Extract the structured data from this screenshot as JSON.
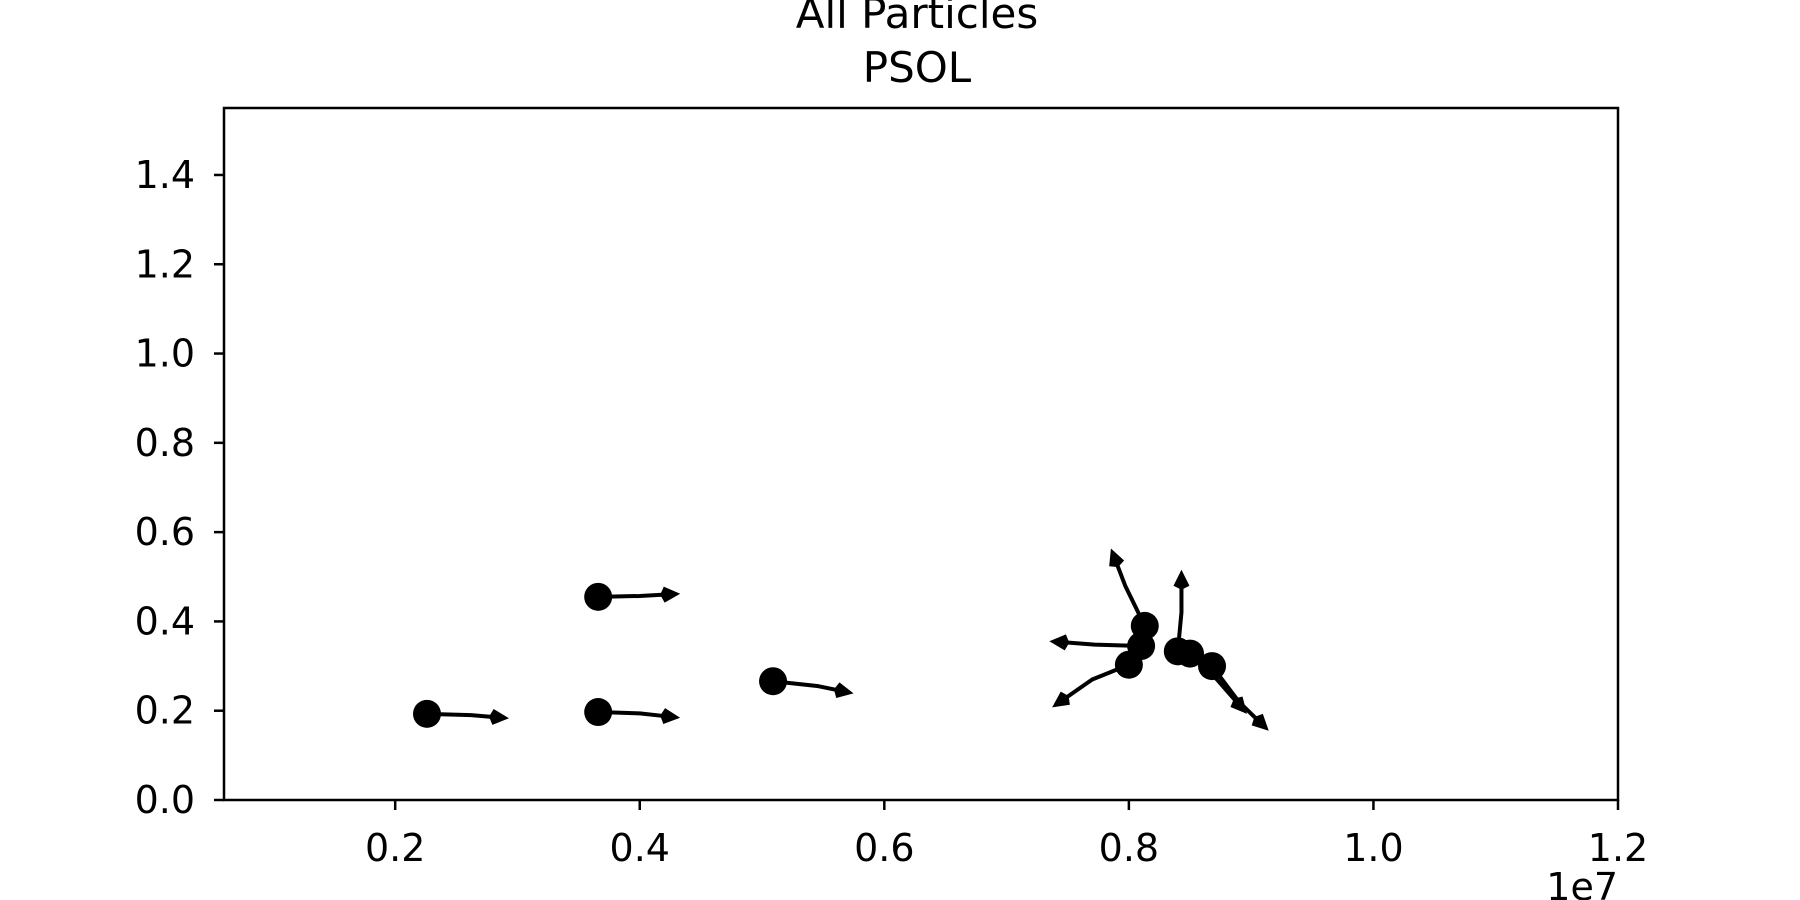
{
  "chart_data": {
    "type": "scatter",
    "title_lines": [
      "All Particles",
      "PSOL"
    ],
    "xlabel": "",
    "ylabel": "",
    "x_offset_label": "1e7",
    "xlim": [
      0.06,
      1.2
    ],
    "ylim": [
      0.0,
      1.55
    ],
    "x_ticks": [
      0.2,
      0.4,
      0.6,
      0.8,
      1.0,
      1.2
    ],
    "x_tick_labels": [
      "0.2",
      "0.4",
      "0.6",
      "0.8",
      "1.0",
      "1.2"
    ],
    "y_ticks": [
      0.0,
      0.2,
      0.4,
      0.6,
      0.8,
      1.0,
      1.2,
      1.4
    ],
    "y_tick_labels": [
      "0.0",
      "0.2",
      "0.4",
      "0.6",
      "0.8",
      "1.0",
      "1.2",
      "1.4"
    ],
    "grid": false,
    "legend": "none",
    "color": "#000000",
    "particles": [
      {
        "x": 0.226,
        "y": 0.193,
        "trail": [
          [
            0.226,
            0.193
          ],
          [
            0.262,
            0.19
          ],
          [
            0.28,
            0.186
          ]
        ]
      },
      {
        "x": 0.366,
        "y": 0.197,
        "trail": [
          [
            0.366,
            0.197
          ],
          [
            0.4,
            0.194
          ],
          [
            0.42,
            0.188
          ]
        ]
      },
      {
        "x": 0.366,
        "y": 0.455,
        "trail": [
          [
            0.366,
            0.455
          ],
          [
            0.4,
            0.457
          ],
          [
            0.42,
            0.46
          ]
        ]
      },
      {
        "x": 0.509,
        "y": 0.266,
        "trail": [
          [
            0.509,
            0.266
          ],
          [
            0.546,
            0.255
          ],
          [
            0.562,
            0.246
          ]
        ]
      },
      {
        "x": 0.8,
        "y": 0.303,
        "trail": [
          [
            0.8,
            0.303
          ],
          [
            0.77,
            0.27
          ],
          [
            0.748,
            0.228
          ]
        ]
      },
      {
        "x": 0.81,
        "y": 0.345,
        "trail": [
          [
            0.81,
            0.345
          ],
          [
            0.772,
            0.348
          ],
          [
            0.748,
            0.353
          ]
        ]
      },
      {
        "x": 0.813,
        "y": 0.39,
        "trail": [
          [
            0.813,
            0.39
          ],
          [
            0.797,
            0.48
          ],
          [
            0.79,
            0.53
          ]
        ]
      },
      {
        "x": 0.84,
        "y": 0.333,
        "trail": [
          [
            0.84,
            0.333
          ],
          [
            0.843,
            0.42
          ],
          [
            0.843,
            0.48
          ]
        ]
      },
      {
        "x": 0.85,
        "y": 0.328,
        "trail": [
          [
            0.85,
            0.328
          ],
          [
            0.872,
            0.27
          ],
          [
            0.888,
            0.22
          ]
        ]
      },
      {
        "x": 0.868,
        "y": 0.3,
        "trail": [
          [
            0.868,
            0.3
          ],
          [
            0.89,
            0.22
          ],
          [
            0.905,
            0.18
          ]
        ]
      }
    ]
  }
}
